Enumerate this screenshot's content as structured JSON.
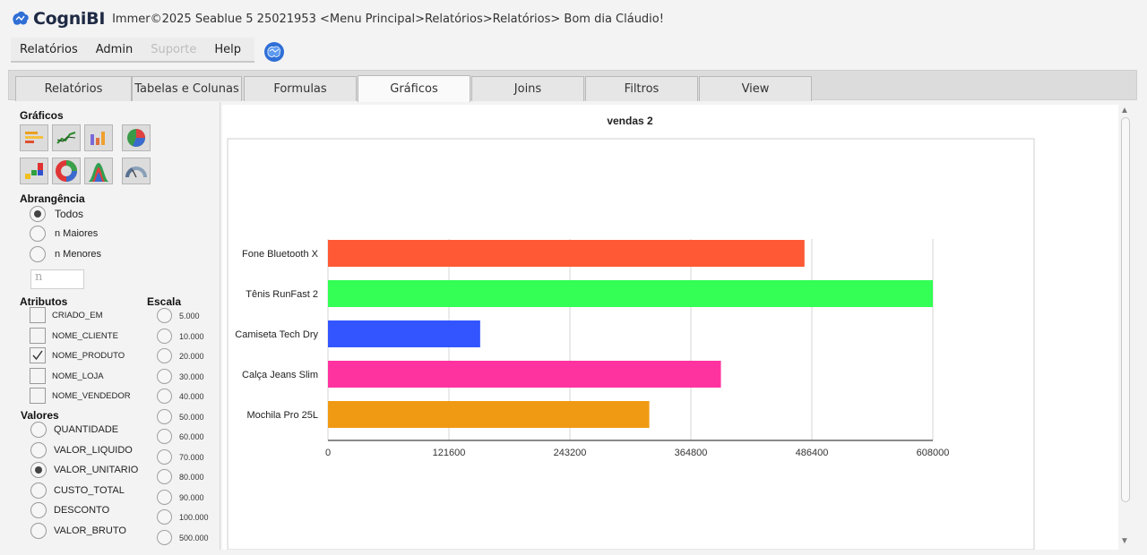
{
  "app": {
    "logo_text": "CogniBI",
    "title_info": "Immer©2025 Seablue 5 25021953  <Menu Principal>Relatórios>Relatórios>   Bom dia Cláudio!"
  },
  "menu": {
    "items": [
      {
        "label": "Relatórios",
        "disabled": false
      },
      {
        "label": "Admin",
        "disabled": false
      },
      {
        "label": "Suporte",
        "disabled": true
      },
      {
        "label": "Help",
        "disabled": false
      }
    ]
  },
  "tabs": [
    {
      "label": "Relatórios",
      "active": false
    },
    {
      "label": "Tabelas e Colunas",
      "active": false
    },
    {
      "label": "Formulas",
      "active": false
    },
    {
      "label": "Gráficos",
      "active": true
    },
    {
      "label": "Joins",
      "active": false
    },
    {
      "label": "Filtros",
      "active": false
    },
    {
      "label": "View",
      "active": false
    }
  ],
  "left": {
    "graficos_label": "Gráficos",
    "chart_types": [
      "horizontal-bar-chart-icon",
      "line-chart-icon",
      "vertical-bar-chart-icon",
      "pie-chart-icon",
      "stacked-chart-icon",
      "donut-chart-icon",
      "area-chart-icon",
      "gauge-chart-icon"
    ],
    "abrangencia_label": "Abrangência",
    "abrangencia": [
      {
        "label": "Todos",
        "checked": true
      },
      {
        "label": "n Maiores",
        "checked": false
      },
      {
        "label": "n Menores",
        "checked": false
      }
    ],
    "n_placeholder": "n",
    "atributos_label": "Atributos",
    "atributos": [
      {
        "label": "CRIADO_EM",
        "checked": false
      },
      {
        "label": "NOME_CLIENTE",
        "checked": false
      },
      {
        "label": "NOME_PRODUTO",
        "checked": true
      },
      {
        "label": "NOME_LOJA",
        "checked": false
      },
      {
        "label": "NOME_VENDEDOR",
        "checked": false
      }
    ],
    "escala_label": "Escala",
    "escala": [
      "5.000",
      "10.000",
      "20.000",
      "30.000",
      "40.000",
      "50.000",
      "60.000",
      "70.000",
      "80.000",
      "90.000",
      "100.000",
      "500.000"
    ],
    "valores_label": "Valores",
    "valores": [
      {
        "label": "QUANTIDADE",
        "checked": false
      },
      {
        "label": "VALOR_LIQUIDO",
        "checked": false
      },
      {
        "label": "VALOR_UNITARIO",
        "checked": true
      },
      {
        "label": "CUSTO_TOTAL",
        "checked": false
      },
      {
        "label": "DESCONTO",
        "checked": false
      },
      {
        "label": "VALOR_BRUTO",
        "checked": false
      }
    ]
  },
  "chart_data": {
    "type": "bar",
    "orientation": "horizontal",
    "title": "vendas 2",
    "categories": [
      "Fone Bluetooth X",
      "Tênis RunFast 2",
      "Camiseta Tech Dry",
      "Calça Jeans Slim",
      "Mochila Pro 25L"
    ],
    "values": [
      479000,
      608000,
      153000,
      395000,
      323000
    ],
    "colors": [
      "#ff5a35",
      "#33ff55",
      "#3355ff",
      "#ff33a0",
      "#f09a14"
    ],
    "xlim": [
      0,
      608000
    ],
    "xticks": [
      "0",
      "121600",
      "243200",
      "364800",
      "486400",
      "608000"
    ],
    "grid": true
  }
}
